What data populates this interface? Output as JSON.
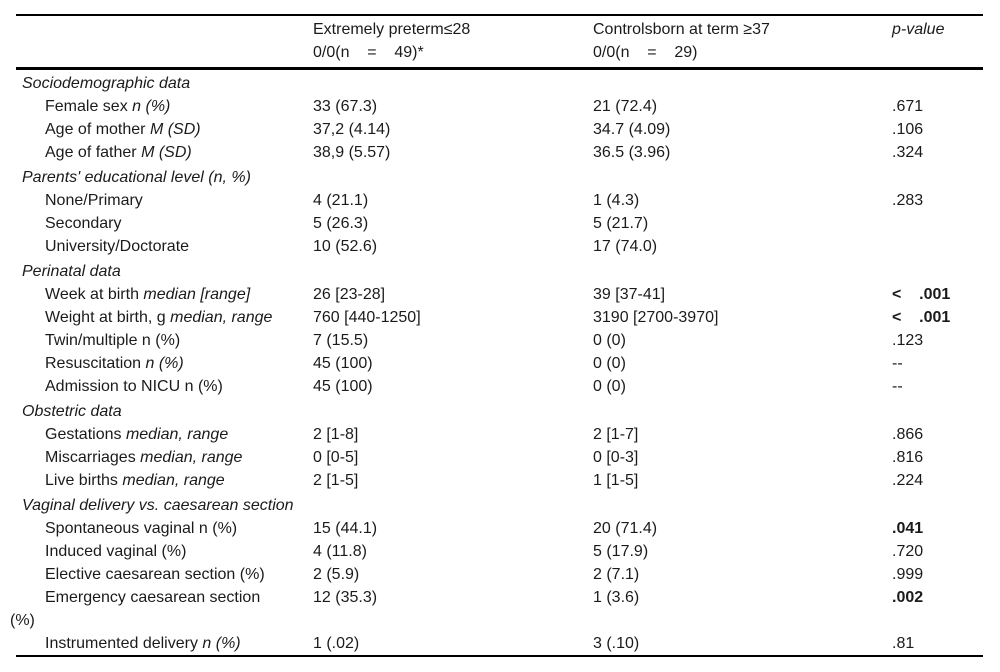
{
  "header": {
    "preterm": {
      "line1": "Extremely preterm≤28",
      "line2": "0/0(n    =    49)*"
    },
    "control": {
      "line1": "Controlsborn at term ≥37",
      "line2": "0/0(n    =    29)"
    },
    "pvalue": "p-value"
  },
  "sections": [
    {
      "title": "Sociodemographic data",
      "rows": [
        {
          "label": "Female sex ",
          "label_italic": "n (%)",
          "preterm": "33 (67.3)",
          "control": "21 (72.4)",
          "p": ".671"
        },
        {
          "label": "Age of mother ",
          "label_italic": "M (SD)",
          "preterm": "37,2 (4.14)",
          "control": "34.7 (4.09)",
          "p": ".106"
        },
        {
          "label": "Age of father ",
          "label_italic": "M (SD)",
          "preterm": "38,9 (5.57)",
          "control": "36.5 (3.96)",
          "p": ".324"
        }
      ]
    },
    {
      "title": "Parents' educational level (n, %)",
      "rows": [
        {
          "label": "None/Primary",
          "preterm": "4 (21.1)",
          "control": "1 (4.3)",
          "p": ".283"
        },
        {
          "label": "Secondary",
          "preterm": "5 (26.3)",
          "control": "5 (21.7)",
          "p": ""
        },
        {
          "label": "University/Doctorate",
          "preterm": "10 (52.6)",
          "control": "17 (74.0)",
          "p": ""
        }
      ]
    },
    {
      "title": "Perinatal data",
      "rows": [
        {
          "label": "Week at birth ",
          "label_italic": "median [range]",
          "preterm": "26 [23-28]",
          "control": "39 [37-41]",
          "p": "<    .001"
        },
        {
          "label": "Weight at birth, g ",
          "label_italic": "median, range",
          "preterm": "760 [440-1250]",
          "control": "3190 [2700-3970]",
          "p": "<    .001"
        },
        {
          "label": "Twin/multiple n (%)",
          "preterm": "7 (15.5)",
          "control": "0 (0)",
          "p": ".123"
        },
        {
          "label": "Resuscitation ",
          "label_italic": "n (%)",
          "preterm": "45 (100)",
          "control": "0 (0)",
          "p": "--"
        },
        {
          "label": "Admission to NICU n (%)",
          "preterm": "45 (100)",
          "control": "0 (0)",
          "p": "--"
        }
      ]
    },
    {
      "title": "Obstetric data",
      "rows": [
        {
          "label": "Gestations ",
          "label_italic": "median, range",
          "preterm": "2 [1-8]",
          "control": "2 [1-7]",
          "p": ".866"
        },
        {
          "label": "Miscarriages ",
          "label_italic": "median, range",
          "preterm": "0 [0-5]",
          "control": "0 [0-3]",
          "p": ".816"
        },
        {
          "label": "Live births ",
          "label_italic": "median, range",
          "preterm": "2 [1-5]",
          "control": "1 [1-5]",
          "p": ".224"
        }
      ]
    },
    {
      "title": "Vaginal delivery vs. caesarean section",
      "rows": [
        {
          "label": "Spontaneous vaginal n (%)",
          "preterm": "15 (44.1)",
          "control": "20 (71.4)",
          "p": ".041"
        },
        {
          "label": "Induced vaginal (%)",
          "preterm": "4 (11.8)",
          "control": "5 (17.9)",
          "p": ".720"
        },
        {
          "label": "Elective caesarean section (%)",
          "preterm": "2 (5.9)",
          "control": "2 (7.1)",
          "p": ".999"
        },
        {
          "label": "Emergency caesarean section\n(%)",
          "preterm": "12 (35.3)",
          "control": "1 (3.6)",
          "p": ".002"
        },
        {
          "label": "Instrumented delivery ",
          "label_italic": "n (%)",
          "preterm": "1 (.02)",
          "control": "3 (.10)",
          "p": ".81"
        }
      ]
    }
  ]
}
